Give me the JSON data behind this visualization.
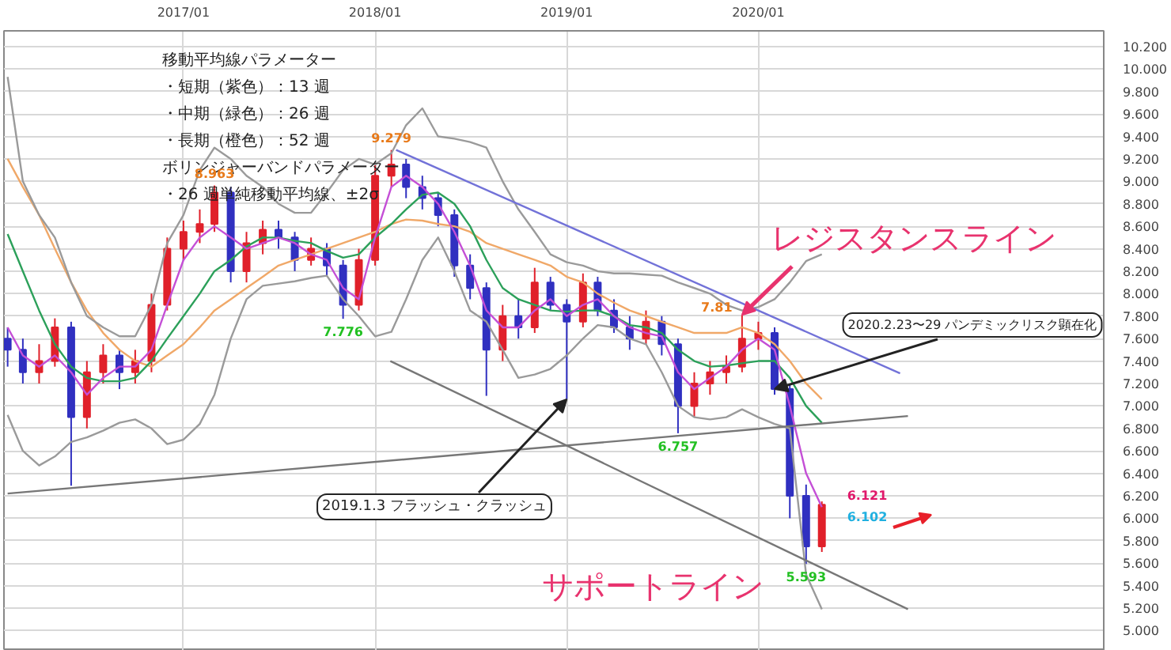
{
  "chart_data": {
    "type": "candlestick",
    "x": [
      "2016-02",
      "2016-03",
      "2016-04",
      "2016-05",
      "2016-06",
      "2016-07",
      "2016-08",
      "2016-09",
      "2016-10",
      "2016-11",
      "2016-12",
      "2017-01",
      "2017-02",
      "2017-03",
      "2017-04",
      "2017-05",
      "2017-06",
      "2017-07",
      "2017-08",
      "2017-09",
      "2017-10",
      "2017-11",
      "2017-12",
      "2018-01",
      "2018-02",
      "2018-03",
      "2018-04",
      "2018-05",
      "2018-06",
      "2018-07",
      "2018-08",
      "2018-09",
      "2018-10",
      "2018-11",
      "2018-12",
      "2019-01",
      "2019-02",
      "2019-03",
      "2019-04",
      "2019-05",
      "2019-06",
      "2019-07",
      "2019-08",
      "2019-09",
      "2019-10",
      "2019-11",
      "2019-12",
      "2020-01",
      "2020-02",
      "2020-03",
      "2020-04",
      "2020-05"
    ],
    "ohlc": [
      [
        7.6,
        7.7,
        7.35,
        7.5
      ],
      [
        7.5,
        7.6,
        7.2,
        7.3
      ],
      [
        7.3,
        7.55,
        7.2,
        7.4
      ],
      [
        7.4,
        7.78,
        7.35,
        7.7
      ],
      [
        7.7,
        7.75,
        6.29,
        6.9
      ],
      [
        6.9,
        7.4,
        6.8,
        7.3
      ],
      [
        7.3,
        7.55,
        7.2,
        7.45
      ],
      [
        7.45,
        7.5,
        7.15,
        7.3
      ],
      [
        7.3,
        7.5,
        7.2,
        7.4
      ],
      [
        7.4,
        8.0,
        7.3,
        7.9
      ],
      [
        7.9,
        8.5,
        7.85,
        8.4
      ],
      [
        8.4,
        8.65,
        8.3,
        8.55
      ],
      [
        8.55,
        8.75,
        8.45,
        8.62
      ],
      [
        8.62,
        8.963,
        8.55,
        8.9
      ],
      [
        8.9,
        8.95,
        8.1,
        8.2
      ],
      [
        8.2,
        8.55,
        8.1,
        8.45
      ],
      [
        8.45,
        8.65,
        8.35,
        8.57
      ],
      [
        8.57,
        8.65,
        8.4,
        8.5
      ],
      [
        8.5,
        8.55,
        8.2,
        8.3
      ],
      [
        8.3,
        8.5,
        8.25,
        8.4
      ],
      [
        8.4,
        8.45,
        8.15,
        8.25
      ],
      [
        8.25,
        8.3,
        7.776,
        7.9
      ],
      [
        7.9,
        8.4,
        7.85,
        8.3
      ],
      [
        8.3,
        9.15,
        8.25,
        9.05
      ],
      [
        9.05,
        9.279,
        8.95,
        9.15
      ],
      [
        9.15,
        9.2,
        8.85,
        8.95
      ],
      [
        8.95,
        9.05,
        8.75,
        8.85
      ],
      [
        8.85,
        8.9,
        8.6,
        8.7
      ],
      [
        8.7,
        8.75,
        8.15,
        8.25
      ],
      [
        8.25,
        8.35,
        7.95,
        8.05
      ],
      [
        8.05,
        8.1,
        7.09,
        7.5
      ],
      [
        7.5,
        7.9,
        7.4,
        7.8
      ],
      [
        7.8,
        7.95,
        7.6,
        7.7
      ],
      [
        7.7,
        8.23,
        7.65,
        8.1
      ],
      [
        8.1,
        8.15,
        7.85,
        7.9
      ],
      [
        7.9,
        7.95,
        7.06,
        7.75
      ],
      [
        7.75,
        8.18,
        7.7,
        8.1
      ],
      [
        8.1,
        8.15,
        7.8,
        7.85
      ],
      [
        7.85,
        7.95,
        7.65,
        7.7
      ],
      [
        7.7,
        7.8,
        7.5,
        7.6
      ],
      [
        7.6,
        7.85,
        7.55,
        7.75
      ],
      [
        7.75,
        7.8,
        7.45,
        7.55
      ],
      [
        7.55,
        7.6,
        6.757,
        7.0
      ],
      [
        7.0,
        7.3,
        6.9,
        7.2
      ],
      [
        7.2,
        7.4,
        7.1,
        7.3
      ],
      [
        7.3,
        7.45,
        7.2,
        7.35
      ],
      [
        7.35,
        7.81,
        7.3,
        7.6
      ],
      [
        7.6,
        7.75,
        7.5,
        7.65
      ],
      [
        7.65,
        7.7,
        7.1,
        7.15
      ],
      [
        7.15,
        7.2,
        6.0,
        6.2
      ],
      [
        6.2,
        6.3,
        5.593,
        5.75
      ],
      [
        5.75,
        6.15,
        5.7,
        6.121
      ]
    ],
    "colors": [
      "#3030c0",
      "#3030c0",
      "#e0202a",
      "#e0202a",
      "#3030c0",
      "#e0202a",
      "#e0202a",
      "#3030c0",
      "#e0202a",
      "#e0202a",
      "#e0202a",
      "#e0202a",
      "#e0202a",
      "#e0202a",
      "#3030c0",
      "#e0202a",
      "#e0202a",
      "#3030c0",
      "#3030c0",
      "#e0202a",
      "#3030c0",
      "#3030c0",
      "#e0202a",
      "#e0202a",
      "#e0202a",
      "#3030c0",
      "#3030c0",
      "#3030c0",
      "#3030c0",
      "#3030c0",
      "#3030c0",
      "#e0202a",
      "#3030c0",
      "#e0202a",
      "#3030c0",
      "#3030c0",
      "#e0202a",
      "#3030c0",
      "#3030c0",
      "#3030c0",
      "#e0202a",
      "#3030c0",
      "#3030c0",
      "#e0202a",
      "#e0202a",
      "#e0202a",
      "#e0202a",
      "#e0202a",
      "#3030c0",
      "#3030c0",
      "#3030c0",
      "#e0202a"
    ],
    "series": [
      {
        "type": "line",
        "color": "#f0a868",
        "values": [
          9.2,
          8.95,
          8.7,
          8.4,
          8.1,
          7.85,
          7.65,
          7.5,
          7.4,
          7.35,
          7.45,
          7.55,
          7.7,
          7.85,
          7.95,
          8.05,
          8.15,
          8.25,
          8.3,
          8.35,
          8.4,
          8.45,
          8.5,
          8.55,
          8.62,
          8.66,
          8.65,
          8.62,
          8.6,
          8.55,
          8.45,
          8.4,
          8.35,
          8.3,
          8.25,
          8.15,
          8.1,
          8.0,
          7.92,
          7.85,
          7.8,
          7.75,
          7.7,
          7.65,
          7.65,
          7.65,
          7.7,
          7.65,
          7.55,
          7.4,
          7.2,
          7.06
        ]
      },
      {
        "type": "line",
        "color": "#2ca05a",
        "values": [
          8.53,
          8.2,
          7.85,
          7.55,
          7.35,
          7.25,
          7.22,
          7.22,
          7.25,
          7.4,
          7.6,
          7.8,
          8.0,
          8.2,
          8.3,
          8.42,
          8.5,
          8.5,
          8.47,
          8.45,
          8.38,
          8.32,
          8.35,
          8.5,
          8.62,
          8.75,
          8.88,
          8.9,
          8.8,
          8.6,
          8.3,
          8.05,
          7.95,
          7.9,
          7.85,
          7.84,
          7.85,
          7.85,
          7.8,
          7.72,
          7.7,
          7.65,
          7.5,
          7.4,
          7.35,
          7.36,
          7.38,
          7.4,
          7.4,
          7.25,
          7.0,
          6.85
        ]
      },
      {
        "type": "line",
        "color": "#c44fd6",
        "values": [
          7.7,
          7.45,
          7.35,
          7.45,
          7.3,
          7.1,
          7.25,
          7.35,
          7.35,
          7.5,
          7.9,
          8.3,
          8.5,
          8.6,
          8.5,
          8.4,
          8.45,
          8.5,
          8.45,
          8.35,
          8.3,
          8.05,
          7.95,
          8.5,
          8.95,
          9.05,
          8.95,
          8.8,
          8.55,
          8.25,
          7.85,
          7.7,
          7.7,
          7.85,
          7.95,
          7.8,
          7.9,
          7.95,
          7.8,
          7.7,
          7.65,
          7.62,
          7.3,
          7.15,
          7.25,
          7.35,
          7.5,
          7.6,
          7.5,
          7.0,
          6.4,
          6.1
        ]
      },
      {
        "type": "line",
        "color": "#9a9a9a",
        "values": [
          9.93,
          9.0,
          8.7,
          8.5,
          8.1,
          7.8,
          7.7,
          7.62,
          7.62,
          7.9,
          8.45,
          8.7,
          9.1,
          9.3,
          9.2,
          9.05,
          8.95,
          8.8,
          8.72,
          8.72,
          8.9,
          9.1,
          9.2,
          9.15,
          9.25,
          9.5,
          9.65,
          9.4,
          9.38,
          9.35,
          9.3,
          9.0,
          8.75,
          8.55,
          8.35,
          8.28,
          8.25,
          8.2,
          8.18,
          8.18,
          8.17,
          8.16,
          8.1,
          8.05,
          8.0,
          7.9,
          7.85,
          7.88,
          7.95,
          8.1,
          8.29,
          8.35
        ]
      },
      {
        "type": "line",
        "color": "#9a9a9a",
        "values": [
          6.92,
          6.6,
          6.47,
          6.55,
          6.68,
          6.72,
          6.78,
          6.85,
          6.88,
          6.8,
          6.66,
          6.7,
          6.84,
          7.1,
          7.6,
          7.95,
          8.07,
          8.09,
          8.11,
          8.14,
          8.16,
          7.95,
          7.8,
          7.62,
          7.66,
          7.95,
          8.3,
          8.5,
          8.2,
          7.85,
          7.75,
          7.5,
          7.25,
          7.28,
          7.33,
          7.45,
          7.6,
          7.72,
          7.7,
          7.6,
          7.55,
          7.3,
          7.0,
          6.9,
          6.88,
          6.9,
          6.97,
          6.9,
          6.84,
          6.8,
          5.5,
          5.19
        ]
      },
      {
        "type": "line",
        "color": "#7272d8",
        "x": [
          "2018-02-10",
          "2020-09-27"
        ],
        "values": [
          9.28,
          7.29
        ]
      },
      {
        "type": "line",
        "color": "#777777",
        "x": [
          "2016-02-01",
          "2020-10-12"
        ],
        "values": [
          6.22,
          6.91
        ]
      },
      {
        "type": "line",
        "color": "#777777",
        "x": [
          "2018-01-30",
          "2020-10-12"
        ],
        "values": [
          7.4,
          5.19
        ]
      }
    ],
    "annotations": [
      "移動平均線パラメーター",
      "・短期（紫色）：13 週",
      "・中期（緑色）：26 週",
      "・長期（橙色）：52 週",
      "ボリンジャーバンドパラメーター",
      "・26 週単純移動平均線、±2σ",
      {
        "text": "9.279",
        "x": "2018-02",
        "y": 9.279
      },
      {
        "text": "8.963",
        "x": "2017-03",
        "y": 8.963
      },
      {
        "text": "7.776",
        "x": "2017-11",
        "y": 7.776
      },
      {
        "text": "6.757",
        "x": "2019-08",
        "y": 6.757
      },
      {
        "text": "7.81",
        "x": "2019-12",
        "y": 7.81
      },
      {
        "text": "5.593",
        "x": "2020-04",
        "y": 5.593
      },
      {
        "text": "6.121",
        "x": "2020-05",
        "y": 6.121
      },
      {
        "text": "6.102",
        "x": "2020-05",
        "y": 6.102
      },
      {
        "text": "2019.1.3 フラッシュ・クラッシュ",
        "x": "2019-01",
        "y": 7.06
      },
      {
        "text": "2020.2.23〜29 パンデミックリスク顕在化",
        "x": "2020-02",
        "y": 7.15
      },
      {
        "text": "レジスタンスライン",
        "x": "2019-12",
        "y": 7.81
      },
      "サポートライン"
    ],
    "xlim": [
      "2016-01-25",
      "2021-10-20"
    ],
    "xticks": [
      {
        "value": "2017-01-01",
        "label": "2017/01"
      },
      {
        "value": "2018-01-01",
        "label": "2018/01"
      },
      {
        "value": "2019-01-01",
        "label": "2019/01"
      },
      {
        "value": "2020-01-01",
        "label": "2020/01"
      }
    ],
    "ylim": [
      4.82,
      10.34
    ],
    "yticks": [
      {
        "value": 5.0,
        "label": "5.000"
      },
      {
        "value": 5.2,
        "label": "5.200"
      },
      {
        "value": 5.4,
        "label": "5.400"
      },
      {
        "value": 5.6,
        "label": "5.600"
      },
      {
        "value": 5.8,
        "label": "5.800"
      },
      {
        "value": 6.0,
        "label": "6.000"
      },
      {
        "value": 6.2,
        "label": "6.200"
      },
      {
        "value": 6.4,
        "label": "6.400"
      },
      {
        "value": 6.6,
        "label": "6.600"
      },
      {
        "value": 6.8,
        "label": "6.800"
      },
      {
        "value": 7.0,
        "label": "7.000"
      },
      {
        "value": 7.2,
        "label": "7.200"
      },
      {
        "value": 7.4,
        "label": "7.400"
      },
      {
        "value": 7.6,
        "label": "7.600"
      },
      {
        "value": 7.8,
        "label": "7.800"
      },
      {
        "value": 8.0,
        "label": "8.000"
      },
      {
        "value": 8.2,
        "label": "8.200"
      },
      {
        "value": 8.4,
        "label": "8.400"
      },
      {
        "value": 8.6,
        "label": "8.600"
      },
      {
        "value": 8.8,
        "label": "8.800"
      },
      {
        "value": 9.0,
        "label": "9.000"
      },
      {
        "value": 9.2,
        "label": "9.200"
      },
      {
        "value": 9.4,
        "label": "9.400"
      },
      {
        "value": 9.6,
        "label": "9.600"
      },
      {
        "value": 9.8,
        "label": "9.800"
      },
      {
        "value": 10.0,
        "label": "10.000"
      },
      {
        "value": 10.2,
        "label": "10.200"
      }
    ],
    "grid": true
  }
}
